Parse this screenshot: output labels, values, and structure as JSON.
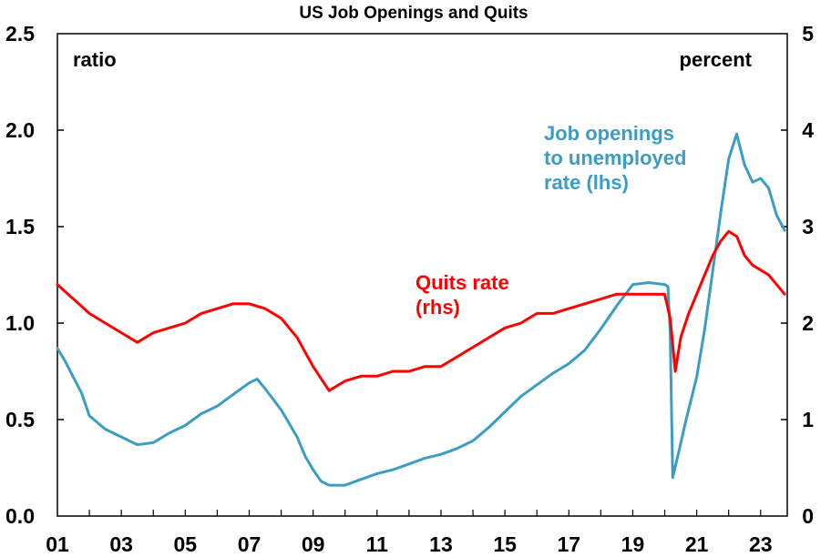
{
  "chart_data": {
    "type": "line",
    "title": "US Job Openings and Quits",
    "left_unit": "ratio",
    "right_unit": "percent",
    "x_tick_labels": [
      "01",
      "03",
      "05",
      "07",
      "09",
      "11",
      "13",
      "15",
      "17",
      "19",
      "21",
      "23"
    ],
    "x_tick_years": [
      2001,
      2003,
      2005,
      2007,
      2009,
      2011,
      2013,
      2015,
      2017,
      2019,
      2021,
      2023
    ],
    "xlim": [
      2001.0,
      2023.833
    ],
    "left_axis": {
      "ylim": [
        0,
        2.5
      ],
      "tick_labels": [
        "0.0",
        "0.5",
        "1.0",
        "1.5",
        "2.0",
        "2.5"
      ],
      "ticks": [
        0,
        0.5,
        1.0,
        1.5,
        2.0,
        2.5
      ]
    },
    "right_axis": {
      "ylim": [
        0,
        5
      ],
      "tick_labels": [
        "0",
        "1",
        "2",
        "3",
        "4",
        "5"
      ],
      "ticks": [
        0,
        1,
        2,
        3,
        4,
        5
      ]
    },
    "grid": false,
    "series": [
      {
        "name": "Job openings to unemployed rate (lhs)",
        "label_lines": [
          "Job openings",
          "to unemployed",
          "rate (lhs)"
        ],
        "axis": "left",
        "color": "#3b9cc4",
        "points": [
          [
            2001.0,
            0.87
          ],
          [
            2001.25,
            0.8
          ],
          [
            2001.5,
            0.72
          ],
          [
            2001.75,
            0.64
          ],
          [
            2002.0,
            0.52
          ],
          [
            2002.5,
            0.45
          ],
          [
            2003.0,
            0.41
          ],
          [
            2003.5,
            0.37
          ],
          [
            2004.0,
            0.38
          ],
          [
            2004.5,
            0.43
          ],
          [
            2005.0,
            0.47
          ],
          [
            2005.5,
            0.53
          ],
          [
            2006.0,
            0.57
          ],
          [
            2006.5,
            0.63
          ],
          [
            2007.0,
            0.69
          ],
          [
            2007.25,
            0.71
          ],
          [
            2007.5,
            0.66
          ],
          [
            2008.0,
            0.55
          ],
          [
            2008.5,
            0.41
          ],
          [
            2008.75,
            0.31
          ],
          [
            2009.0,
            0.24
          ],
          [
            2009.25,
            0.18
          ],
          [
            2009.5,
            0.16
          ],
          [
            2010.0,
            0.16
          ],
          [
            2010.5,
            0.19
          ],
          [
            2011.0,
            0.22
          ],
          [
            2011.5,
            0.24
          ],
          [
            2012.0,
            0.27
          ],
          [
            2012.5,
            0.3
          ],
          [
            2013.0,
            0.32
          ],
          [
            2013.5,
            0.35
          ],
          [
            2014.0,
            0.39
          ],
          [
            2014.5,
            0.46
          ],
          [
            2015.0,
            0.54
          ],
          [
            2015.5,
            0.62
          ],
          [
            2016.0,
            0.68
          ],
          [
            2016.5,
            0.74
          ],
          [
            2017.0,
            0.79
          ],
          [
            2017.5,
            0.86
          ],
          [
            2018.0,
            0.97
          ],
          [
            2018.5,
            1.09
          ],
          [
            2019.0,
            1.2
          ],
          [
            2019.5,
            1.21
          ],
          [
            2020.0,
            1.2
          ],
          [
            2020.1,
            1.19
          ],
          [
            2020.17,
            0.95
          ],
          [
            2020.25,
            0.2
          ],
          [
            2020.42,
            0.32
          ],
          [
            2020.67,
            0.5
          ],
          [
            2021.0,
            0.72
          ],
          [
            2021.25,
            0.97
          ],
          [
            2021.5,
            1.27
          ],
          [
            2021.75,
            1.57
          ],
          [
            2022.0,
            1.85
          ],
          [
            2022.25,
            1.98
          ],
          [
            2022.5,
            1.82
          ],
          [
            2022.75,
            1.73
          ],
          [
            2023.0,
            1.75
          ],
          [
            2023.25,
            1.7
          ],
          [
            2023.5,
            1.56
          ],
          [
            2023.75,
            1.48
          ]
        ]
      },
      {
        "name": "Quits rate (rhs)",
        "label_lines": [
          "Quits rate",
          "(rhs)"
        ],
        "axis": "right",
        "color": "#ff0000",
        "points": [
          [
            2001.0,
            2.4
          ],
          [
            2001.33,
            2.3
          ],
          [
            2001.67,
            2.2
          ],
          [
            2002.0,
            2.1
          ],
          [
            2002.5,
            2.0
          ],
          [
            2003.0,
            1.9
          ],
          [
            2003.5,
            1.8
          ],
          [
            2004.0,
            1.9
          ],
          [
            2004.5,
            1.95
          ],
          [
            2005.0,
            2.0
          ],
          [
            2005.5,
            2.1
          ],
          [
            2006.0,
            2.15
          ],
          [
            2006.5,
            2.2
          ],
          [
            2007.0,
            2.2
          ],
          [
            2007.5,
            2.15
          ],
          [
            2008.0,
            2.05
          ],
          [
            2008.5,
            1.85
          ],
          [
            2009.0,
            1.55
          ],
          [
            2009.5,
            1.3
          ],
          [
            2010.0,
            1.4
          ],
          [
            2010.5,
            1.45
          ],
          [
            2011.0,
            1.45
          ],
          [
            2011.5,
            1.5
          ],
          [
            2012.0,
            1.5
          ],
          [
            2012.5,
            1.55
          ],
          [
            2013.0,
            1.55
          ],
          [
            2013.5,
            1.65
          ],
          [
            2014.0,
            1.75
          ],
          [
            2014.5,
            1.85
          ],
          [
            2015.0,
            1.95
          ],
          [
            2015.5,
            2.0
          ],
          [
            2016.0,
            2.1
          ],
          [
            2016.5,
            2.1
          ],
          [
            2017.0,
            2.15
          ],
          [
            2017.5,
            2.2
          ],
          [
            2018.0,
            2.25
          ],
          [
            2018.5,
            2.3
          ],
          [
            2019.0,
            2.3
          ],
          [
            2019.5,
            2.3
          ],
          [
            2020.0,
            2.3
          ],
          [
            2020.17,
            2.05
          ],
          [
            2020.33,
            1.5
          ],
          [
            2020.5,
            1.85
          ],
          [
            2020.75,
            2.1
          ],
          [
            2021.0,
            2.3
          ],
          [
            2021.25,
            2.5
          ],
          [
            2021.5,
            2.7
          ],
          [
            2021.75,
            2.85
          ],
          [
            2022.0,
            2.95
          ],
          [
            2022.25,
            2.9
          ],
          [
            2022.5,
            2.7
          ],
          [
            2022.75,
            2.6
          ],
          [
            2023.0,
            2.55
          ],
          [
            2023.25,
            2.5
          ],
          [
            2023.5,
            2.4
          ],
          [
            2023.75,
            2.3
          ]
        ]
      }
    ]
  }
}
